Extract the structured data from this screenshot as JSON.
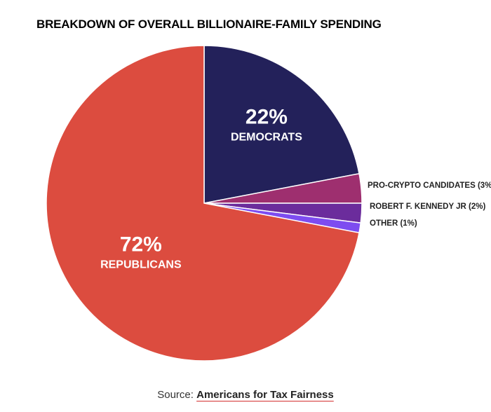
{
  "chart_data": {
    "type": "pie",
    "title": "BREAKDOWN OF OVERALL BILLIONAIRE-FAMILY SPENDING",
    "slices": [
      {
        "label": "DEMOCRATS",
        "value": 22,
        "display": "22%",
        "color": "#23215a",
        "placement": "inside"
      },
      {
        "label": "PRO-CRYPTO CANDIDATES (3%)",
        "value": 3,
        "color": "#9e2f6f",
        "placement": "outside"
      },
      {
        "label": "ROBERT F. KENNEDY JR (2%)",
        "value": 2,
        "color": "#6b2c9c",
        "placement": "outside"
      },
      {
        "label": "OTHER (1%)",
        "value": 1,
        "color": "#7d4cf0",
        "placement": "outside"
      },
      {
        "label": "REPUBLICANS",
        "value": 72,
        "display": "72%",
        "color": "#dc4c3f",
        "placement": "inside"
      }
    ],
    "start_angle": "12 o'clock",
    "direction": "clockwise"
  },
  "source": {
    "prefix": "Source:",
    "link": "Americans for Tax Fairness"
  }
}
